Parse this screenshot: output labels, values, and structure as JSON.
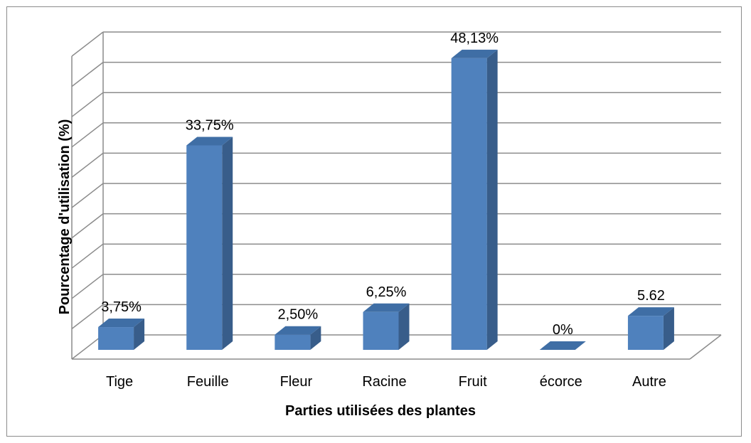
{
  "chart_data": {
    "type": "bar",
    "categories": [
      "Tige",
      "Feuille",
      "Fleur",
      "Racine",
      "Fruit",
      "écorce",
      "Autre"
    ],
    "values": [
      3.75,
      33.75,
      2.5,
      6.25,
      48.13,
      0,
      5.62
    ],
    "data_labels": [
      "3,75%",
      "33,75%",
      "2,50%",
      "6,25%",
      "48,13%",
      "0%",
      "5.62"
    ],
    "xlabel": "Parties utilisées des plantes",
    "ylabel": "Pourcentage d'utilisation (%)",
    "ylim": [
      0,
      50
    ],
    "gridlines": 10,
    "grid": true,
    "legend": "none",
    "bar_color": "#4f81bd",
    "bar_side_color": "#385d8a",
    "bar_top_color": "#3f6ea5",
    "grid_color": "#8c8c8c"
  }
}
